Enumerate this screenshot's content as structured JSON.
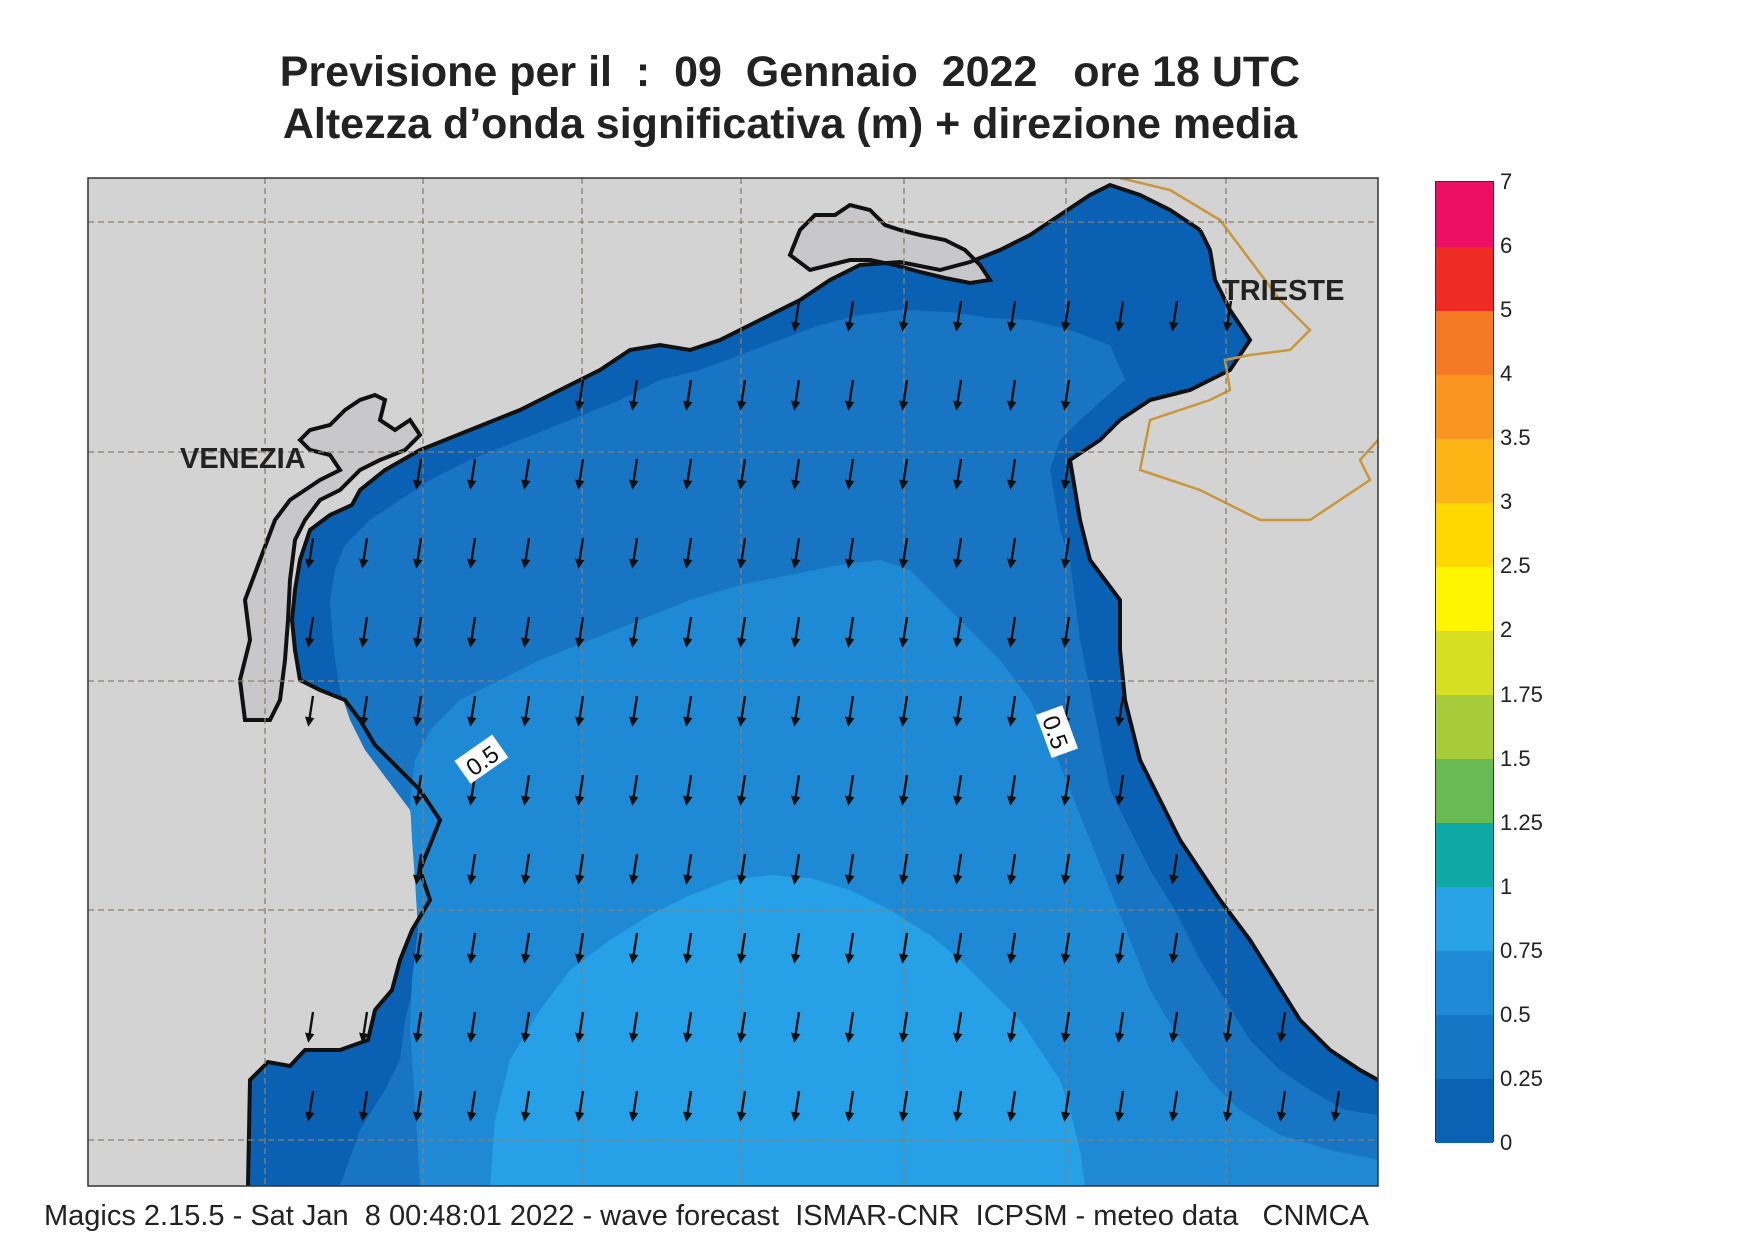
{
  "title": {
    "line1": "Previsione per il  :  09  Gennaio  2022   ore 18 UTC",
    "line2": "Altezza d’onda significativa (m) + direzione media"
  },
  "map": {
    "places": [
      {
        "name": "VENEZIA"
      },
      {
        "name": "TRIESTE"
      }
    ],
    "contour_labels": [
      "0.5",
      "0.5"
    ],
    "land_color": "#d3d3d4",
    "border_color": "#c9973a",
    "arrow_direction": "S",
    "field_colors": {
      "h0_025": "#0a61b3",
      "h025_05": "#1775c4",
      "h05_075": "#1e8ad6",
      "h075_1": "#26a0e6"
    }
  },
  "colorbar": {
    "levels": [
      "0",
      "0.25",
      "0.5",
      "0.75",
      "1",
      "1.25",
      "1.5",
      "1.75",
      "2",
      "2.5",
      "3",
      "3.5",
      "4",
      "5",
      "6",
      "7"
    ],
    "colors": [
      "#0b62b5",
      "#1676c6",
      "#1f8ad7",
      "#29a2e6",
      "#0ea8a5",
      "#68bb52",
      "#a7cc3a",
      "#d7df22",
      "#fff500",
      "#ffd800",
      "#fdb515",
      "#f99520",
      "#f47a26",
      "#ee2b24",
      "#ed0f63"
    ]
  },
  "footer": "Magics 2.15.5 - Sat Jan  8 00:48:01 2022 - wave forecast  ISMAR-CNR  ICPSM - meteo data   CNMCA"
}
